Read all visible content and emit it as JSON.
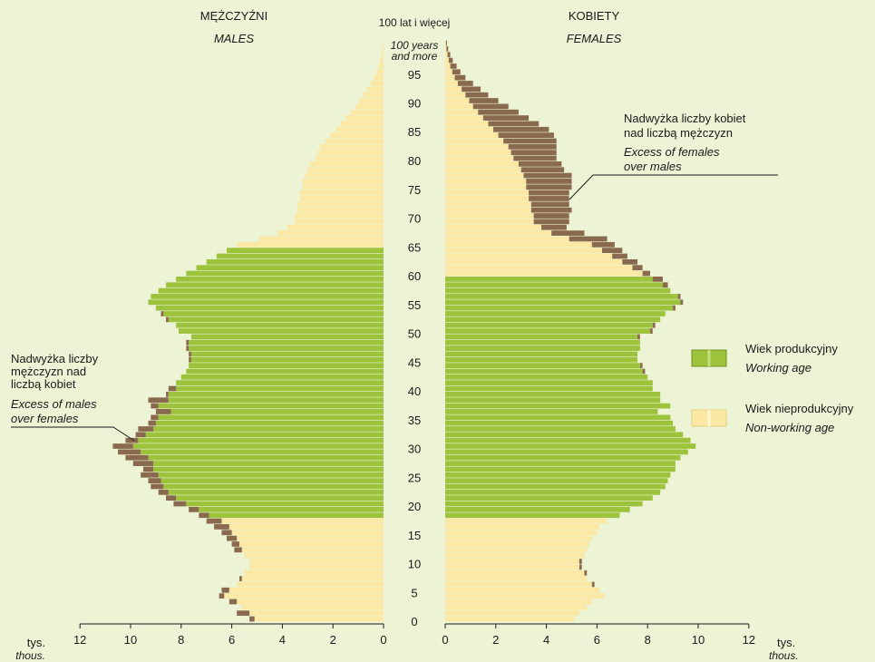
{
  "chart_data": {
    "type": "bar",
    "subtype": "population-pyramid",
    "headings": {
      "males_pl": "MĘŻCZYŹNI",
      "males_en": "MALES",
      "females_pl": "KOBIETY",
      "females_en": "FEMALES",
      "top_age_pl": "100 lat i więcej",
      "top_age_en_1": "100 years",
      "top_age_en_2": "and more"
    },
    "unit": {
      "left_pl": "tys.",
      "left_en": "thous.",
      "right_pl": "tys.",
      "right_en": "thous."
    },
    "x_ticks": [
      "12",
      "10",
      "8",
      "6",
      "4",
      "2",
      "0"
    ],
    "x_ticks_right": [
      "0",
      "2",
      "4",
      "6",
      "8",
      "10",
      "12"
    ],
    "xlim": [
      0,
      12
    ],
    "age_ticks": [
      "0",
      "5",
      "10",
      "15",
      "20",
      "25",
      "30",
      "35",
      "40",
      "45",
      "50",
      "55",
      "60",
      "65",
      "70",
      "75",
      "80",
      "85",
      "90",
      "95"
    ],
    "working_age": {
      "males": [
        18,
        64
      ],
      "females": [
        18,
        59
      ]
    },
    "colors": {
      "background": "#ECF4D5",
      "working": "#9DC23C",
      "nonworking": "#FBE8A5",
      "excess": "#8A6A4E"
    },
    "series": [
      {
        "name": "males",
        "ages": [
          0,
          1,
          2,
          3,
          4,
          5,
          6,
          7,
          8,
          9,
          10,
          11,
          12,
          13,
          14,
          15,
          16,
          17,
          18,
          19,
          20,
          21,
          22,
          23,
          24,
          25,
          26,
          27,
          28,
          29,
          30,
          31,
          32,
          33,
          34,
          35,
          36,
          37,
          38,
          39,
          40,
          41,
          42,
          43,
          44,
          45,
          46,
          47,
          48,
          49,
          50,
          51,
          52,
          53,
          54,
          55,
          56,
          57,
          58,
          59,
          60,
          61,
          62,
          63,
          64,
          65,
          66,
          67,
          68,
          69,
          70,
          71,
          72,
          73,
          74,
          75,
          76,
          77,
          78,
          79,
          80,
          81,
          82,
          83,
          84,
          85,
          86,
          87,
          88,
          89,
          90,
          91,
          92,
          93,
          94,
          95,
          96,
          97,
          98,
          99,
          100
        ],
        "values": [
          5.3,
          5.8,
          5.6,
          6.1,
          6.5,
          6.4,
          5.8,
          5.7,
          5.5,
          5.3,
          5.3,
          5.5,
          5.9,
          6.0,
          6.2,
          6.4,
          6.7,
          7.0,
          7.3,
          7.7,
          8.3,
          8.6,
          8.9,
          9.2,
          9.3,
          9.6,
          9.5,
          9.9,
          10.2,
          10.5,
          10.7,
          10.2,
          9.8,
          9.7,
          9.3,
          9.2,
          9.0,
          9.2,
          9.3,
          8.6,
          8.5,
          8.2,
          8.0,
          7.8,
          7.7,
          7.7,
          7.7,
          7.8,
          7.8,
          7.6,
          8.1,
          8.2,
          8.6,
          8.8,
          9.0,
          9.3,
          9.2,
          8.9,
          8.6,
          8.2,
          7.8,
          7.4,
          7.0,
          6.6,
          6.2,
          5.8,
          4.9,
          4.2,
          3.8,
          3.5,
          3.5,
          3.4,
          3.4,
          3.3,
          3.3,
          3.2,
          3.2,
          3.1,
          3.0,
          2.9,
          2.7,
          2.6,
          2.5,
          2.3,
          2.1,
          1.9,
          1.7,
          1.5,
          1.3,
          1.1,
          0.95,
          0.8,
          0.65,
          0.5,
          0.38,
          0.28,
          0.2,
          0.14,
          0.09,
          0.05,
          0.03
        ]
      },
      {
        "name": "females",
        "ages": [
          0,
          1,
          2,
          3,
          4,
          5,
          6,
          7,
          8,
          9,
          10,
          11,
          12,
          13,
          14,
          15,
          16,
          17,
          18,
          19,
          20,
          21,
          22,
          23,
          24,
          25,
          26,
          27,
          28,
          29,
          30,
          31,
          32,
          33,
          34,
          35,
          36,
          37,
          38,
          39,
          40,
          41,
          42,
          43,
          44,
          45,
          46,
          47,
          48,
          49,
          50,
          51,
          52,
          53,
          54,
          55,
          56,
          57,
          58,
          59,
          60,
          61,
          62,
          63,
          64,
          65,
          66,
          67,
          68,
          69,
          70,
          71,
          72,
          73,
          74,
          75,
          76,
          77,
          78,
          79,
          80,
          81,
          82,
          83,
          84,
          85,
          86,
          87,
          88,
          89,
          90,
          91,
          92,
          93,
          94,
          95,
          96,
          97,
          98,
          99,
          100
        ],
        "values": [
          5.1,
          5.3,
          5.6,
          5.8,
          6.3,
          6.1,
          5.9,
          5.6,
          5.6,
          5.4,
          5.4,
          5.5,
          5.6,
          5.7,
          5.8,
          6.0,
          6.1,
          6.4,
          6.9,
          7.3,
          7.8,
          8.2,
          8.5,
          8.7,
          8.8,
          8.9,
          9.1,
          9.1,
          9.3,
          9.6,
          9.9,
          9.7,
          9.4,
          9.1,
          9.0,
          8.9,
          8.4,
          8.9,
          8.5,
          8.5,
          8.2,
          8.2,
          8.0,
          7.9,
          7.8,
          7.6,
          7.6,
          7.7,
          7.7,
          7.7,
          8.2,
          8.3,
          8.5,
          8.7,
          9.1,
          9.4,
          9.3,
          8.9,
          8.8,
          8.6,
          8.1,
          7.8,
          7.6,
          7.2,
          7.0,
          6.7,
          6.4,
          5.5,
          4.8,
          4.9,
          4.9,
          5.0,
          4.9,
          4.9,
          4.9,
          5.0,
          5.0,
          5.0,
          4.7,
          4.6,
          4.4,
          4.4,
          4.4,
          4.4,
          4.3,
          4.1,
          3.7,
          3.3,
          2.9,
          2.5,
          2.1,
          1.7,
          1.4,
          1.1,
          0.8,
          0.6,
          0.45,
          0.3,
          0.2,
          0.12,
          0.07
        ]
      }
    ],
    "legend": {
      "working_pl": "Wiek produkcyjny",
      "working_en": "Working age",
      "nonworking_pl": "Wiek nieprodukcyjny",
      "nonworking_en": "Non-working age",
      "placement": "right"
    },
    "annotations": {
      "females_excess": [
        "Nadwyżka liczby kobiet",
        "nad liczbą mężczyzn",
        "Excess of females",
        "over males"
      ],
      "males_excess": [
        "Nadwyżka liczby",
        "mężczyzn nad",
        "liczbą kobiet",
        "Excess of males",
        "over females"
      ]
    }
  }
}
